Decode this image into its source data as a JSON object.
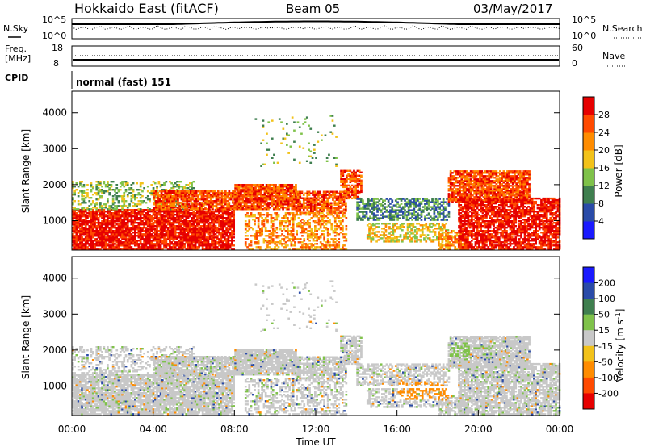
{
  "header": {
    "title": "Hokkaido East (fitACF)",
    "beam": "Beam 05",
    "date": "03/May/2017"
  },
  "summary_panels": {
    "nsky_label": "N.Sky",
    "nsky_hi": "10^5",
    "nsky_lo": "10^0",
    "nsearch_label": "N.Search",
    "nsearch_hi": "10^5",
    "nsearch_lo": "10^0",
    "freq_label_1": "Freq.",
    "freq_label_2": "[MHz]",
    "freq_hi": "18",
    "freq_lo": "8",
    "nave_label": "Nave",
    "nave_hi": "60",
    "nave_lo": "0",
    "cpid_label": "CPID",
    "cpid_value": "normal (fast) 151"
  },
  "colors": {
    "power": [
      "#1a1aff",
      "#2a4ba8",
      "#3f7f4f",
      "#7fc24a",
      "#f2c21a",
      "#ff8c00",
      "#ff4a00",
      "#e60000"
    ],
    "velocity": [
      "#e60000",
      "#ff4a00",
      "#ff8c00",
      "#f2c21a",
      "#c8c8c8",
      "#7fc24a",
      "#3f7f4f",
      "#2a4ba8",
      "#1a1aff"
    ]
  },
  "chart_data": [
    {
      "type": "heatmap",
      "title": "Power",
      "ylabel": "Slant Range [km]",
      "yticks": [
        "1000",
        "2000",
        "3000",
        "4000"
      ],
      "ylim": [
        180,
        4600
      ],
      "xlim": [
        0,
        24
      ],
      "colorbar_label": "Power [dB]",
      "colorbar_ticks": [
        "4",
        "8",
        "12",
        "16",
        "20",
        "24",
        "28"
      ],
      "colorbar_range": [
        0,
        32
      ]
    },
    {
      "type": "heatmap",
      "title": "Velocity",
      "ylabel": "Slant Range [km]",
      "yticks": [
        "1000",
        "2000",
        "3000",
        "4000"
      ],
      "ylim": [
        180,
        4600
      ],
      "xlim": [
        0,
        24
      ],
      "xlabel": "Time UT",
      "xticks": [
        "00:00",
        "04:00",
        "08:00",
        "12:00",
        "16:00",
        "20:00",
        "00:00"
      ],
      "colorbar_label": "Velocity [m s^-1]",
      "colorbar_ticks": [
        "200",
        "100",
        "50",
        "15",
        "-15",
        "-50",
        "-100",
        "-200"
      ]
    }
  ]
}
